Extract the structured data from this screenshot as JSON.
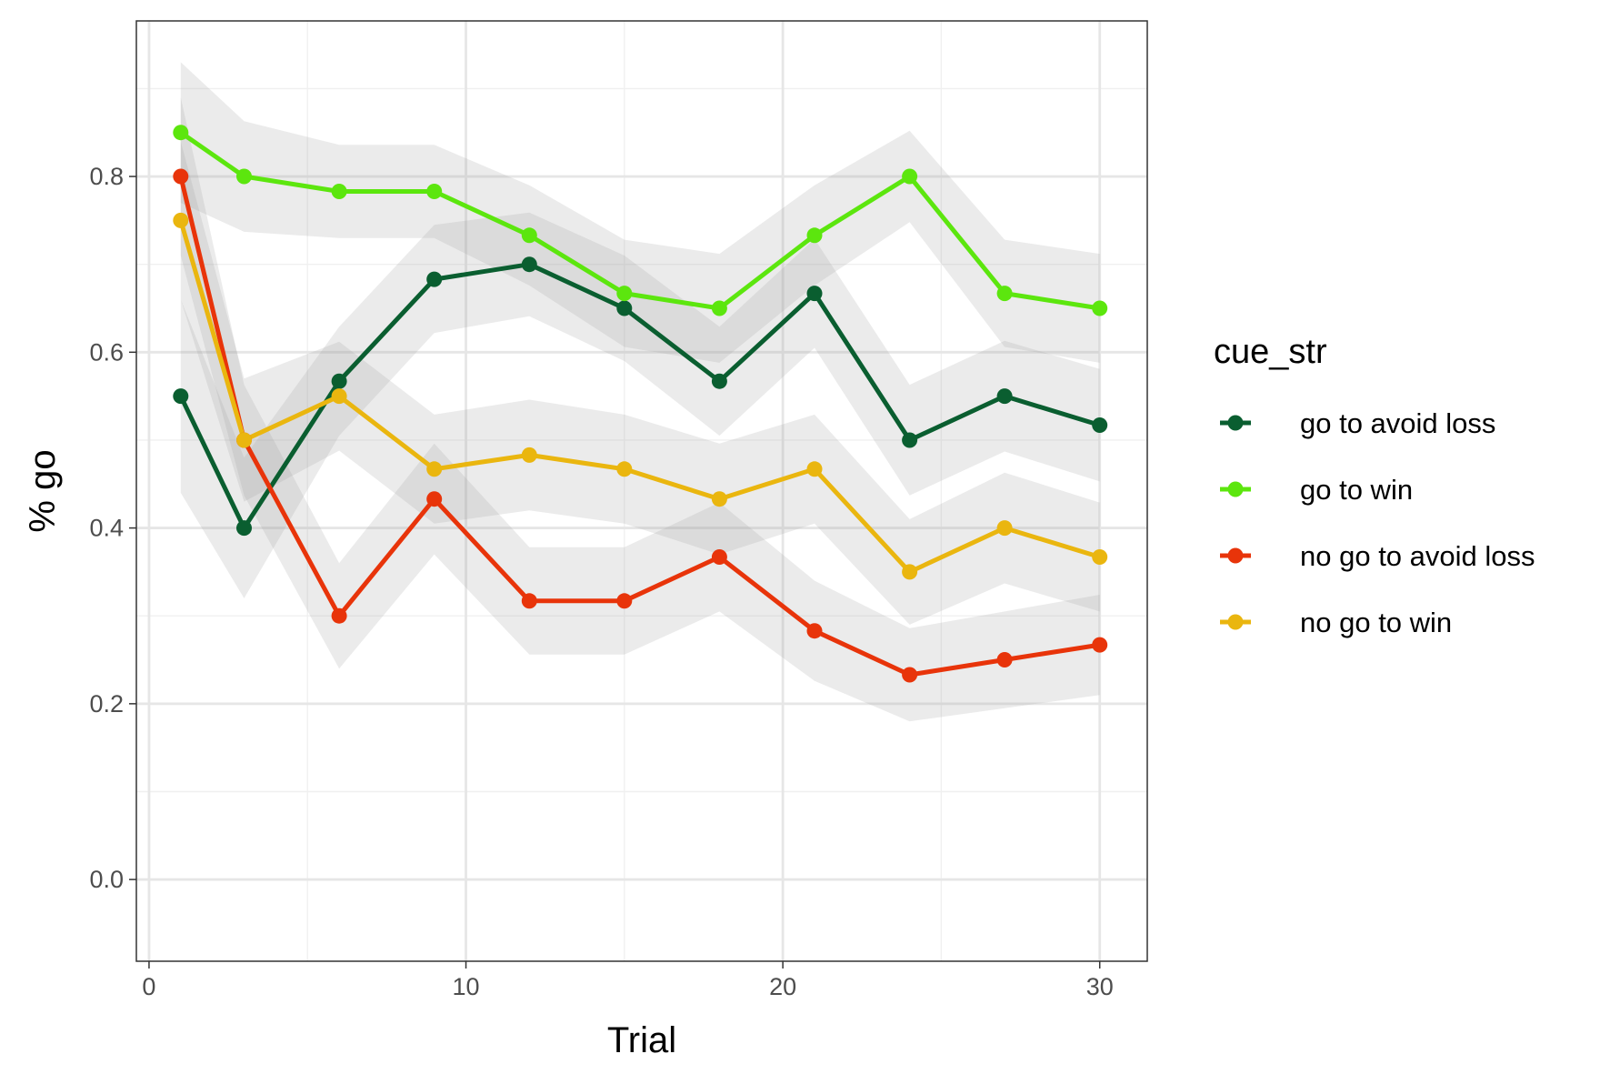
{
  "chart_data": {
    "type": "line",
    "xlabel": "Trial",
    "ylabel": "% go",
    "xlim": [
      -0.4,
      31.5
    ],
    "ylim": [
      -0.093,
      0.977
    ],
    "x_ticks": [
      0,
      10,
      20,
      30
    ],
    "y_ticks": [
      0.0,
      0.2,
      0.4,
      0.6,
      0.8
    ],
    "x_ticks_text": [
      "0",
      "10",
      "20",
      "30"
    ],
    "y_ticks_text": [
      "0.0",
      "0.2",
      "0.4",
      "0.6",
      "0.8"
    ],
    "grid": true,
    "x": [
      1,
      3,
      6,
      9,
      12,
      15,
      18,
      21,
      24,
      27,
      30
    ],
    "legend": {
      "title": "cue_str",
      "position": "right"
    },
    "series": [
      {
        "name": "go to avoid loss",
        "color": "#0a5e30",
        "values": [
          0.55,
          0.4,
          0.567,
          0.683,
          0.7,
          0.65,
          0.567,
          0.667,
          0.5,
          0.55,
          0.517
        ],
        "lower": [
          0.44,
          0.32,
          0.505,
          0.622,
          0.641,
          0.59,
          0.505,
          0.605,
          0.437,
          0.487,
          0.453
        ],
        "upper": [
          0.66,
          0.48,
          0.629,
          0.745,
          0.759,
          0.71,
          0.629,
          0.729,
          0.563,
          0.613,
          0.581
        ]
      },
      {
        "name": "go to win",
        "color": "#5ce60e",
        "values": [
          0.85,
          0.8,
          0.783,
          0.783,
          0.733,
          0.667,
          0.65,
          0.733,
          0.8,
          0.667,
          0.65
        ],
        "lower": [
          0.77,
          0.737,
          0.73,
          0.73,
          0.676,
          0.606,
          0.588,
          0.676,
          0.748,
          0.606,
          0.588
        ],
        "upper": [
          0.93,
          0.863,
          0.836,
          0.836,
          0.79,
          0.728,
          0.712,
          0.79,
          0.852,
          0.728,
          0.712
        ]
      },
      {
        "name": "no go to avoid loss",
        "color": "#e8340a",
        "values": [
          0.8,
          0.5,
          0.3,
          0.433,
          0.317,
          0.317,
          0.367,
          0.283,
          0.233,
          0.25,
          0.267
        ],
        "lower": [
          0.71,
          0.437,
          0.24,
          0.37,
          0.256,
          0.256,
          0.305,
          0.226,
          0.18,
          0.195,
          0.21
        ],
        "upper": [
          0.89,
          0.563,
          0.36,
          0.496,
          0.378,
          0.378,
          0.429,
          0.34,
          0.286,
          0.305,
          0.324
        ]
      },
      {
        "name": "no go to win",
        "color": "#eab60f",
        "values": [
          0.75,
          0.5,
          0.55,
          0.467,
          0.483,
          0.467,
          0.433,
          0.467,
          0.35,
          0.4,
          0.367
        ],
        "lower": [
          0.66,
          0.43,
          0.488,
          0.405,
          0.42,
          0.405,
          0.37,
          0.405,
          0.29,
          0.337,
          0.305
        ],
        "upper": [
          0.84,
          0.57,
          0.612,
          0.529,
          0.546,
          0.529,
          0.496,
          0.529,
          0.41,
          0.463,
          0.429
        ]
      }
    ]
  }
}
